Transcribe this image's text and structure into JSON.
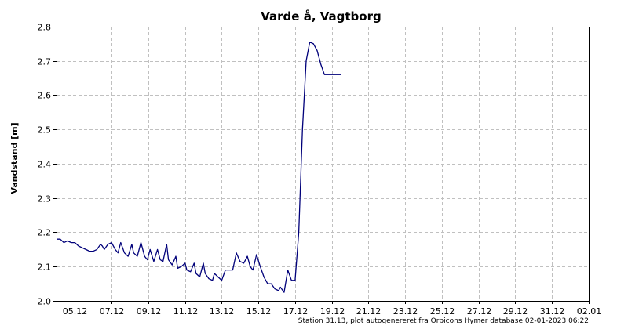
{
  "chart_data": {
    "type": "line",
    "title": "Varde å, Vagtborg",
    "xlabel": "",
    "ylabel": "Vandstand [m]",
    "footer": "Station 31.13, plot autogenereret fra Orbicons Hymer database 02-01-2023 06:22",
    "ylim": [
      2.0,
      2.8
    ],
    "yticks": [
      "2.0",
      "2.1",
      "2.2",
      "2.3",
      "2.4",
      "2.5",
      "2.6",
      "2.7",
      "2.8"
    ],
    "xlim": [
      4.0,
      33.0
    ],
    "xticks": [
      {
        "label": "05.12",
        "day": 5
      },
      {
        "label": "07.12",
        "day": 7
      },
      {
        "label": "09.12",
        "day": 9
      },
      {
        "label": "11.12",
        "day": 11
      },
      {
        "label": "13.12",
        "day": 13
      },
      {
        "label": "15.12",
        "day": 15
      },
      {
        "label": "17.12",
        "day": 17
      },
      {
        "label": "19.12",
        "day": 19
      },
      {
        "label": "21.12",
        "day": 21
      },
      {
        "label": "23.12",
        "day": 23
      },
      {
        "label": "25.12",
        "day": 25
      },
      {
        "label": "27.12",
        "day": 27
      },
      {
        "label": "29.12",
        "day": 29
      },
      {
        "label": "31.12",
        "day": 31
      },
      {
        "label": "02.01",
        "day": 33
      }
    ],
    "grid": true,
    "colors": {
      "series": "#00007a",
      "grid": "#c0c0c0"
    },
    "series": [
      {
        "x": [
          4.0,
          4.2,
          4.4,
          4.6,
          4.8,
          5.0,
          5.2,
          5.4,
          5.6,
          5.8,
          6.0,
          6.2,
          6.4,
          6.5,
          6.6,
          6.8,
          7.0,
          7.2,
          7.35,
          7.5,
          7.7,
          7.9,
          8.1,
          8.2,
          8.4,
          8.6,
          8.8,
          8.95,
          9.1,
          9.3,
          9.5,
          9.65,
          9.8,
          10.0,
          10.1,
          10.3,
          10.5,
          10.6,
          10.8,
          11.0,
          11.1,
          11.3,
          11.5,
          11.6,
          11.8,
          12.0,
          12.1,
          12.3,
          12.5,
          12.6,
          12.8,
          13.0,
          13.2,
          13.4,
          13.6,
          13.8,
          14.0,
          14.2,
          14.4,
          14.55,
          14.7,
          14.9,
          15.1,
          15.3,
          15.5,
          15.7,
          15.9,
          16.1,
          16.2,
          16.4,
          16.6,
          16.8,
          17.0,
          17.2,
          17.4,
          17.6,
          17.8,
          18.0,
          18.2,
          18.4,
          18.6,
          18.75,
          18.9,
          19.05,
          19.2,
          19.35,
          19.5
        ],
        "y": [
          2.18,
          2.18,
          2.17,
          2.175,
          2.17,
          2.17,
          2.16,
          2.155,
          2.15,
          2.145,
          2.145,
          2.15,
          2.165,
          2.16,
          2.15,
          2.165,
          2.17,
          2.15,
          2.14,
          2.17,
          2.14,
          2.13,
          2.165,
          2.14,
          2.13,
          2.17,
          2.13,
          2.12,
          2.15,
          2.115,
          2.15,
          2.12,
          2.115,
          2.165,
          2.12,
          2.105,
          2.13,
          2.095,
          2.1,
          2.11,
          2.09,
          2.085,
          2.11,
          2.08,
          2.07,
          2.11,
          2.08,
          2.065,
          2.06,
          2.08,
          2.07,
          2.06,
          2.09,
          2.09,
          2.09,
          2.14,
          2.115,
          2.11,
          2.13,
          2.1,
          2.09,
          2.135,
          2.1,
          2.07,
          2.05,
          2.05,
          2.035,
          2.03,
          2.04,
          2.025,
          2.09,
          2.06,
          2.06,
          2.2,
          2.5,
          2.7,
          2.755,
          2.75,
          2.73,
          2.69,
          2.66,
          2.66,
          2.66,
          2.66,
          2.66,
          2.66,
          2.66
        ]
      }
    ]
  }
}
